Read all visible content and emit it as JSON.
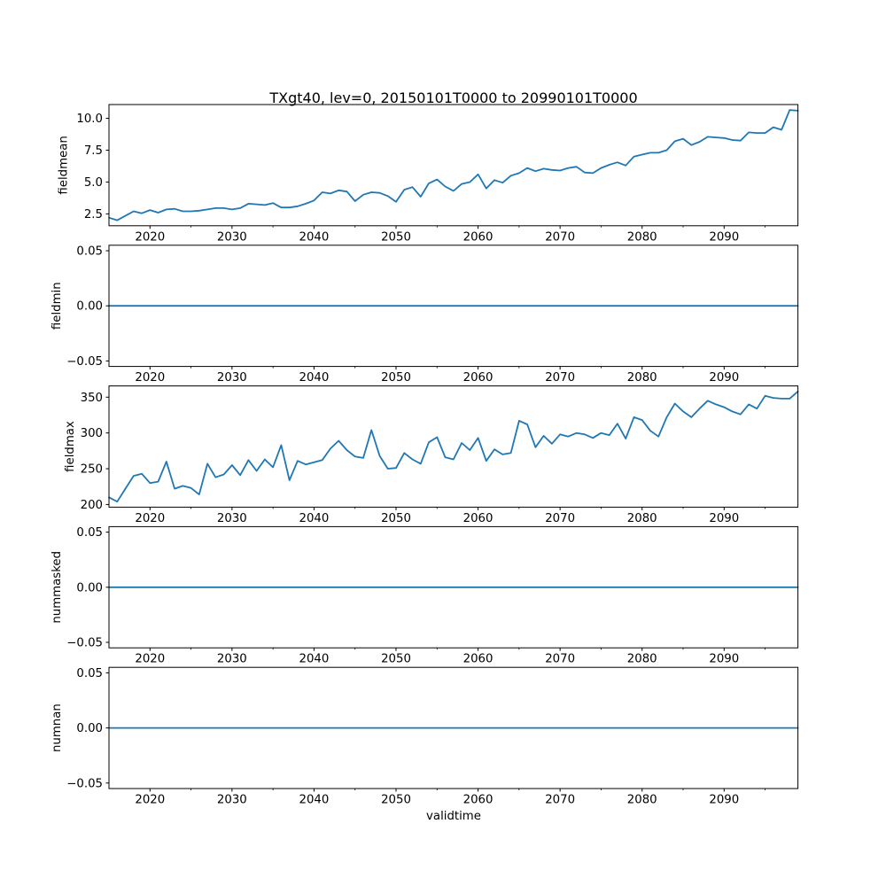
{
  "title": "TXgt40, lev=0, 20150101T0000 to 20990101T0000",
  "xlabel": "validtime",
  "colors": {
    "line": "#1f77b4",
    "axis": "#000000",
    "background": "#ffffff"
  },
  "chart_data": {
    "type": "line",
    "title": "TXgt40, lev=0, 20150101T0000 to 20990101T0000",
    "xlabel": "validtime",
    "legend": null,
    "grid": false,
    "x_start": 2015,
    "x_step": 1,
    "xlim": [
      2015,
      2099
    ],
    "xtick_major_values": [
      2020,
      2030,
      2040,
      2050,
      2060,
      2070,
      2080,
      2090
    ],
    "xtick_major_labels": [
      "2020",
      "2030",
      "2040",
      "2050",
      "2060",
      "2070",
      "2080",
      "2090"
    ],
    "xtick_minor_values": [
      2025,
      2035,
      2045,
      2055,
      2065,
      2075,
      2085,
      2095
    ],
    "line_color": "#1f77b4",
    "subplots": [
      {
        "name": "fieldmean",
        "ylabel": "fieldmean",
        "ylim": [
          1.57,
          11.08
        ],
        "ytick_values": [
          2.5,
          5.0,
          7.5,
          10.0
        ],
        "ytick_labels": [
          "2.5",
          "5.0",
          "7.5",
          "10.0"
        ],
        "values": [
          2.2,
          2.0,
          2.35,
          2.7,
          2.55,
          2.8,
          2.6,
          2.85,
          2.9,
          2.7,
          2.7,
          2.75,
          2.85,
          2.95,
          2.95,
          2.85,
          2.95,
          3.3,
          3.25,
          3.2,
          3.35,
          3.0,
          3.0,
          3.1,
          3.3,
          3.55,
          4.2,
          4.1,
          4.35,
          4.25,
          3.5,
          4.0,
          4.2,
          4.15,
          3.9,
          3.45,
          4.4,
          4.6,
          3.85,
          4.9,
          5.2,
          4.65,
          4.3,
          4.85,
          5.0,
          5.6,
          4.5,
          5.15,
          4.95,
          5.5,
          5.7,
          6.1,
          5.85,
          6.05,
          5.95,
          5.9,
          6.1,
          6.2,
          5.75,
          5.7,
          6.1,
          6.35,
          6.55,
          6.3,
          7.0,
          7.15,
          7.3,
          7.3,
          7.5,
          8.2,
          8.4,
          7.9,
          8.15,
          8.55,
          8.5,
          8.45,
          8.3,
          8.25,
          8.9,
          8.85,
          8.85,
          9.3,
          9.1,
          10.65,
          10.6
        ]
      },
      {
        "name": "fieldmin",
        "ylabel": "fieldmin",
        "ylim": [
          -0.055,
          0.055
        ],
        "ytick_values": [
          0.05,
          0.0,
          -0.05
        ],
        "ytick_labels": [
          "0.05",
          "0.00",
          "−0.05"
        ],
        "constant_value": 0
      },
      {
        "name": "fieldmax",
        "ylabel": "fieldmax",
        "ylim": [
          196.3,
          365.7
        ],
        "ytick_values": [
          200,
          250,
          300,
          350
        ],
        "ytick_labels": [
          "200",
          "250",
          "300",
          "350"
        ],
        "values": [
          210,
          204,
          222,
          240,
          243,
          230,
          232,
          260,
          222,
          226,
          223,
          214,
          257,
          238,
          242,
          255,
          241,
          262,
          247,
          263,
          252,
          283,
          234,
          261,
          256,
          259,
          262,
          278,
          289,
          276,
          267,
          265,
          304,
          268,
          250,
          251,
          272,
          263,
          257,
          287,
          294,
          266,
          263,
          286,
          276,
          293,
          261,
          277,
          270,
          272,
          317,
          312,
          280,
          296,
          285,
          298,
          295,
          300,
          298,
          293,
          300,
          297,
          313,
          292,
          322,
          318,
          303,
          295,
          322,
          341,
          330,
          322,
          334,
          345,
          340,
          336,
          330,
          326,
          340,
          334,
          352,
          349,
          348,
          348,
          358
        ]
      },
      {
        "name": "nummasked",
        "ylabel": "nummasked",
        "ylim": [
          -0.055,
          0.055
        ],
        "ytick_values": [
          0.05,
          0.0,
          -0.05
        ],
        "ytick_labels": [
          "0.05",
          "0.00",
          "−0.05"
        ],
        "constant_value": 0
      },
      {
        "name": "numnan",
        "ylabel": "numnan",
        "ylim": [
          -0.055,
          0.055
        ],
        "ytick_values": [
          0.05,
          0.0,
          -0.05
        ],
        "ytick_labels": [
          "0.05",
          "0.00",
          "−0.05"
        ],
        "constant_value": 0
      }
    ]
  }
}
